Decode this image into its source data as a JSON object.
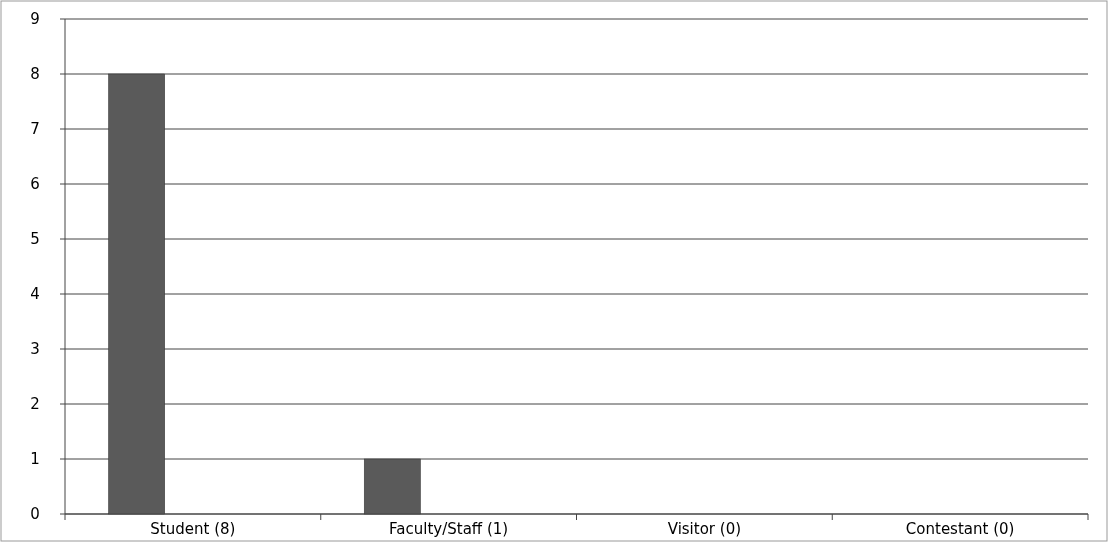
{
  "chart_data": {
    "type": "bar",
    "categories": [
      "Student (8)",
      "Faculty/Staff (1)",
      "Visitor (0)",
      "Contestant (0)"
    ],
    "values": [
      8,
      1,
      0,
      0
    ],
    "color": "#5a5a5a",
    "ylim": [
      0,
      9
    ],
    "yticks": [
      0,
      1,
      2,
      3,
      4,
      5,
      6,
      7,
      8,
      9
    ],
    "grid": "y"
  }
}
